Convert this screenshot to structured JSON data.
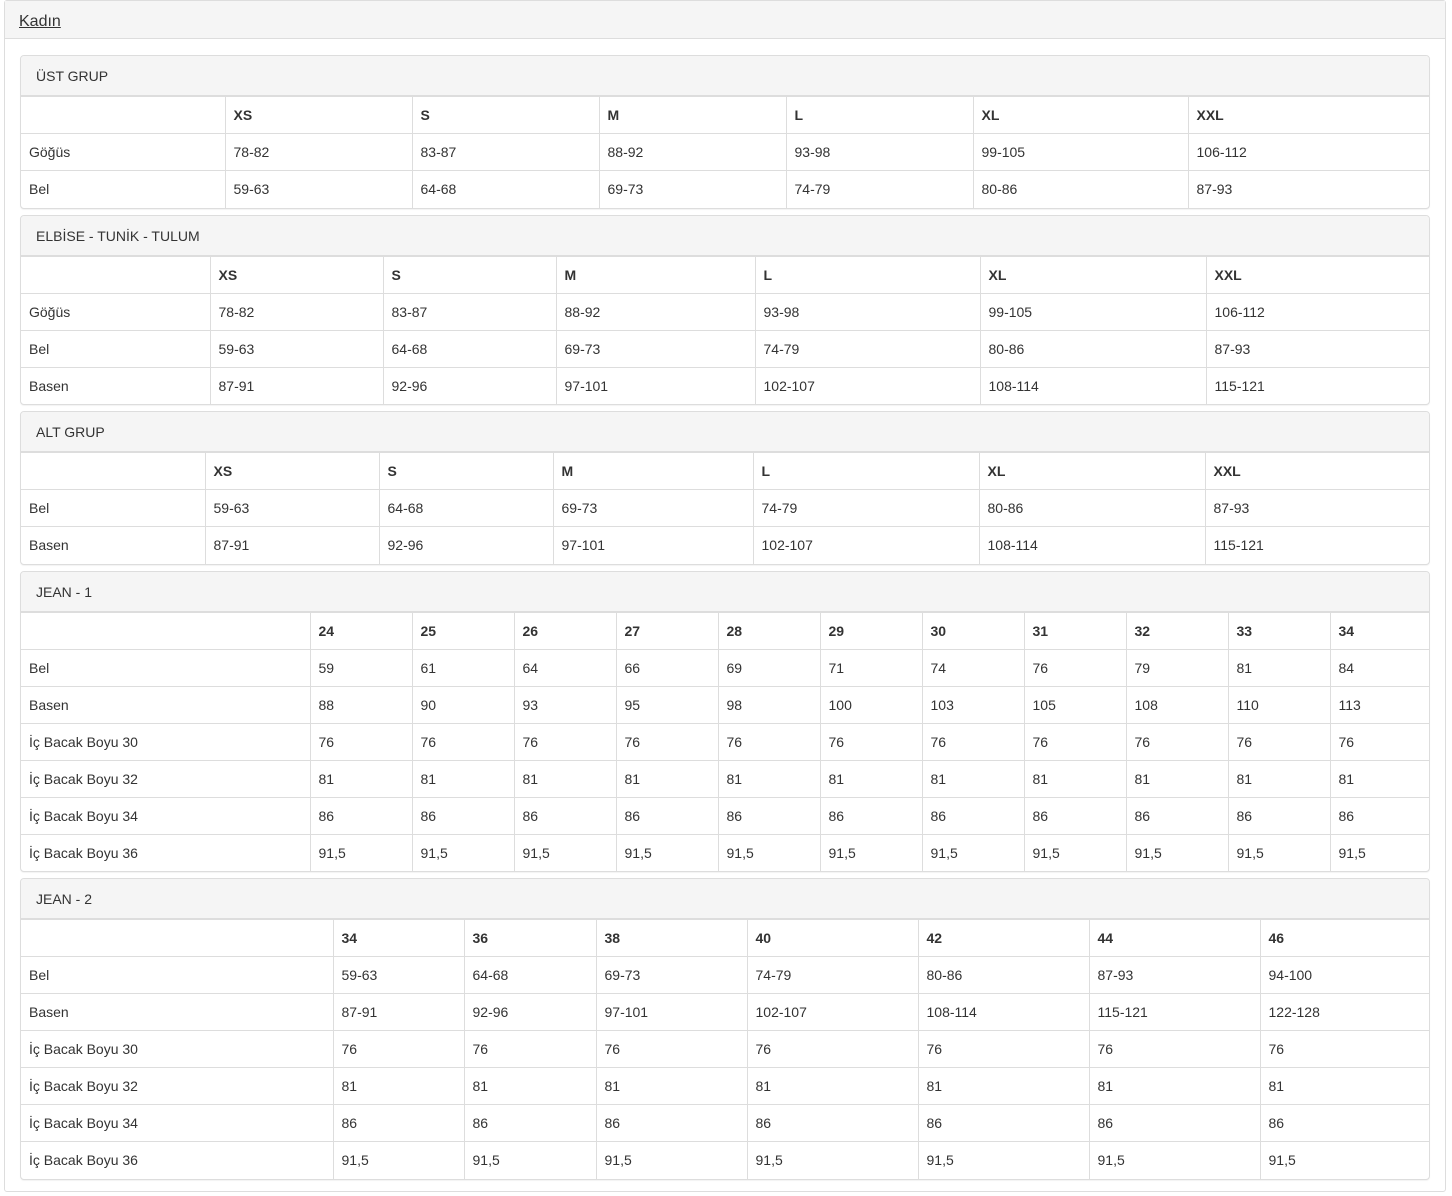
{
  "title": "Kadın",
  "sections": [
    {
      "title": "ÜST GRUP",
      "headers": [
        "",
        "XS",
        "S",
        "M",
        "L",
        "XL",
        "XXL"
      ],
      "rows": [
        {
          "label": "Göğüs",
          "values": [
            "78-82",
            "83-87",
            "88-92",
            "93-98",
            "99-105",
            "106-112"
          ]
        },
        {
          "label": "Bel",
          "values": [
            "59-63",
            "64-68",
            "69-73",
            "74-79",
            "80-86",
            "87-93"
          ]
        }
      ]
    },
    {
      "title": "ELBİSE - TUNİK - TULUM",
      "headers": [
        "",
        "XS",
        "S",
        "M",
        "L",
        "XL",
        "XXL"
      ],
      "rows": [
        {
          "label": "Göğüs",
          "values": [
            "78-82",
            "83-87",
            "88-92",
            "93-98",
            "99-105",
            "106-112"
          ]
        },
        {
          "label": "Bel",
          "values": [
            "59-63",
            "64-68",
            "69-73",
            "74-79",
            "80-86",
            "87-93"
          ]
        },
        {
          "label": "Basen",
          "values": [
            "87-91",
            "92-96",
            "97-101",
            "102-107",
            "108-114",
            "115-121"
          ]
        }
      ]
    },
    {
      "title": "ALT GRUP",
      "headers": [
        "",
        "XS",
        "S",
        "M",
        "L",
        "XL",
        "XXL"
      ],
      "rows": [
        {
          "label": "Bel",
          "values": [
            "59-63",
            "64-68",
            "69-73",
            "74-79",
            "80-86",
            "87-93"
          ]
        },
        {
          "label": "Basen",
          "values": [
            "87-91",
            "92-96",
            "97-101",
            "102-107",
            "108-114",
            "115-121"
          ]
        }
      ]
    },
    {
      "title": "JEAN - 1",
      "headers": [
        "",
        "24",
        "25",
        "26",
        "27",
        "28",
        "29",
        "30",
        "31",
        "32",
        "33",
        "34"
      ],
      "rows": [
        {
          "label": "Bel",
          "values": [
            "59",
            "61",
            "64",
            "66",
            "69",
            "71",
            "74",
            "76",
            "79",
            "81",
            "84"
          ]
        },
        {
          "label": "Basen",
          "values": [
            "88",
            "90",
            "93",
            "95",
            "98",
            "100",
            "103",
            "105",
            "108",
            "110",
            "113"
          ]
        },
        {
          "label": "İç Bacak Boyu 30",
          "values": [
            "76",
            "76",
            "76",
            "76",
            "76",
            "76",
            "76",
            "76",
            "76",
            "76",
            "76"
          ]
        },
        {
          "label": "İç Bacak Boyu 32",
          "values": [
            "81",
            "81",
            "81",
            "81",
            "81",
            "81",
            "81",
            "81",
            "81",
            "81",
            "81"
          ]
        },
        {
          "label": "İç Bacak Boyu 34",
          "values": [
            "86",
            "86",
            "86",
            "86",
            "86",
            "86",
            "86",
            "86",
            "86",
            "86",
            "86"
          ]
        },
        {
          "label": "İç Bacak Boyu 36",
          "values": [
            "91,5",
            "91,5",
            "91,5",
            "91,5",
            "91,5",
            "91,5",
            "91,5",
            "91,5",
            "91,5",
            "91,5",
            "91,5"
          ]
        }
      ]
    },
    {
      "title": "JEAN - 2",
      "headers": [
        "",
        "34",
        "36",
        "38",
        "40",
        "42",
        "44",
        "46"
      ],
      "rows": [
        {
          "label": "Bel",
          "values": [
            "59-63",
            "64-68",
            "69-73",
            "74-79",
            "80-86",
            "87-93",
            "94-100"
          ]
        },
        {
          "label": "Basen",
          "values": [
            "87-91",
            "92-96",
            "97-101",
            "102-107",
            "108-114",
            "115-121",
            "122-128"
          ]
        },
        {
          "label": "İç Bacak Boyu 30",
          "values": [
            "76",
            "76",
            "76",
            "76",
            "76",
            "76",
            "76"
          ]
        },
        {
          "label": "İç Bacak Boyu 32",
          "values": [
            "81",
            "81",
            "81",
            "81",
            "81",
            "81",
            "81"
          ]
        },
        {
          "label": "İç Bacak Boyu 34",
          "values": [
            "86",
            "86",
            "86",
            "86",
            "86",
            "86",
            "86"
          ]
        },
        {
          "label": "İç Bacak Boyu 36",
          "values": [
            "91,5",
            "91,5",
            "91,5",
            "91,5",
            "91,5",
            "91,5",
            "91,5"
          ]
        }
      ]
    }
  ]
}
